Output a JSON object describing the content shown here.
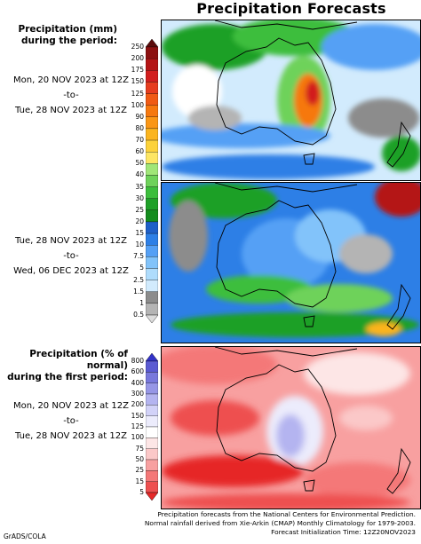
{
  "title": "Precipitation Forecasts",
  "section1": {
    "header_line1": "Precipitation (mm)",
    "header_line2": "during the period:",
    "period1": {
      "start": "Mon, 20 NOV 2023 at 12Z",
      "to": "-to-",
      "end": "Tue, 28 NOV 2023 at 12Z"
    },
    "period2": {
      "start": "Tue, 28 NOV 2023 at 12Z",
      "to": "-to-",
      "end": "Wed, 06 DEC 2023 at 12Z"
    }
  },
  "section2": {
    "header_line1": "Precipitation (% of normal)",
    "header_line2": "during the first period:",
    "period": {
      "start": "Mon, 20 NOV 2023 at 12Z",
      "to": "-to-",
      "end": "Tue, 28 NOV 2023 at 12Z"
    }
  },
  "colorbar_mm": {
    "ticks": [
      "250",
      "200",
      "175",
      "150",
      "125",
      "100",
      "90",
      "80",
      "70",
      "60",
      "50",
      "40",
      "35",
      "30",
      "25",
      "20",
      "15",
      "10",
      "7.5",
      "5",
      "2.5",
      "1.5",
      "1",
      "0.5"
    ],
    "colors": [
      "#5a0a0a",
      "#8c1010",
      "#b41414",
      "#d21e1e",
      "#e63c1e",
      "#f05a14",
      "#f6780f",
      "#fa9616",
      "#fbb41e",
      "#fcd23a",
      "#fde664",
      "#a0e678",
      "#6ed25a",
      "#3cbe3c",
      "#1ea028",
      "#148c1e",
      "#1e5fc8",
      "#2d7fe6",
      "#55a0f5",
      "#82c3fa",
      "#afdcfc",
      "#d2ebfd",
      "#8c8c8c",
      "#b4b4b4",
      "#dcdcdc"
    ]
  },
  "colorbar_pct": {
    "ticks": [
      "800",
      "600",
      "400",
      "300",
      "200",
      "150",
      "125",
      "100",
      "75",
      "50",
      "25",
      "15",
      "5"
    ],
    "colors": [
      "#3232c8",
      "#5a5ad2",
      "#7878dc",
      "#9696e6",
      "#b4b4f0",
      "#d2d2f8",
      "#ececfc",
      "#ffffff",
      "#fde6e6",
      "#fbc8c8",
      "#f8a0a0",
      "#f47878",
      "#ee5050",
      "#e62828"
    ]
  },
  "footer": {
    "line1": "Precipitation forecasts from the National Centers for Environmental Prediction.",
    "line2": "Normal rainfall derived from Xie-Arkin (CMAP) Monthly Climatology for 1979-2003.",
    "line3": "Forecast Initialization Time: 12Z20NOV2023",
    "credit": "GrADS/COLA"
  }
}
